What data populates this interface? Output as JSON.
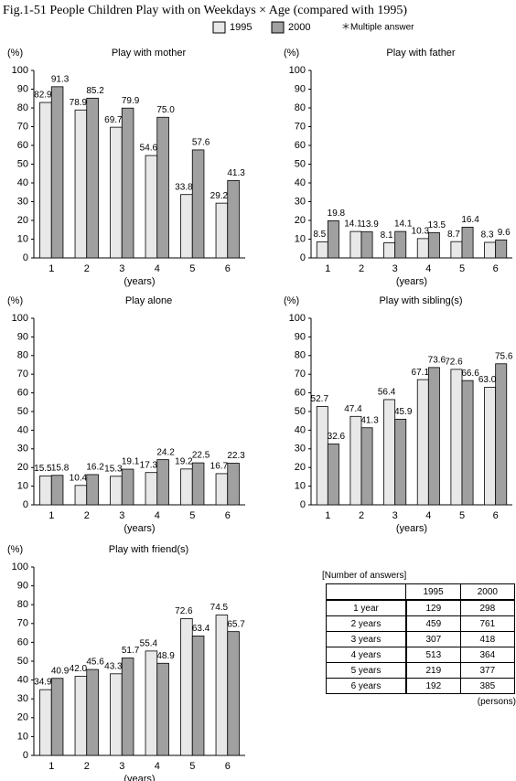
{
  "title": "Fig.1-51 People Children Play with on Weekdays × Age (compared with 1995)",
  "note": "＊Multiple answer",
  "chart_data": [
    {
      "type": "bar",
      "title": "Play with mother",
      "y_label": "(%)",
      "x_label": "(years)",
      "categories": [
        "1",
        "2",
        "3",
        "4",
        "5",
        "6"
      ],
      "series": [
        {
          "name": "1995",
          "color": "#e8e8e8",
          "values": [
            82.9,
            78.9,
            69.7,
            54.6,
            33.8,
            29.2
          ],
          "value_labels": [
            "82.9",
            "78.9",
            "69.7",
            "54.6",
            "33.8",
            "29.2"
          ]
        },
        {
          "name": "2000",
          "color": "#a0a0a0",
          "values": [
            91.3,
            85.2,
            79.9,
            75.0,
            57.6,
            41.3
          ],
          "value_labels": [
            "91.3",
            "85.2",
            "79.9",
            "75.0",
            "57.6",
            "41.3"
          ]
        }
      ],
      "ylim": [
        0,
        100
      ],
      "yticks": [
        0,
        10,
        20,
        30,
        40,
        50,
        60,
        70,
        80,
        90,
        100
      ]
    },
    {
      "type": "bar",
      "title": "Play with father",
      "y_label": "(%)",
      "x_label": "(years)",
      "categories": [
        "1",
        "2",
        "3",
        "4",
        "5",
        "6"
      ],
      "series": [
        {
          "name": "1995",
          "color": "#e8e8e8",
          "values": [
            8.5,
            14.1,
            8.1,
            10.3,
            8.7,
            8.3
          ],
          "value_labels": [
            "8.5",
            "14.1",
            "8.1",
            "10.3",
            "8.7",
            "8.3"
          ]
        },
        {
          "name": "2000",
          "color": "#a0a0a0",
          "values": [
            19.8,
            13.9,
            14.1,
            13.5,
            16.4,
            9.6
          ],
          "value_labels": [
            "19.8",
            "13.9",
            "14.1",
            "13.5",
            "16.4",
            "9.6"
          ]
        }
      ],
      "ylim": [
        0,
        100
      ],
      "yticks": [
        0,
        10,
        20,
        30,
        40,
        50,
        60,
        70,
        80,
        90,
        100
      ]
    },
    {
      "type": "bar",
      "title": "Play alone",
      "y_label": "(%)",
      "x_label": "(years)",
      "categories": [
        "1",
        "2",
        "3",
        "4",
        "5",
        "6"
      ],
      "series": [
        {
          "name": "1995",
          "color": "#e8e8e8",
          "values": [
            15.5,
            10.4,
            15.3,
            17.3,
            19.2,
            16.7
          ],
          "value_labels": [
            "15.5",
            "10.4",
            "15.3",
            "17.3",
            "19.2",
            "16.7"
          ]
        },
        {
          "name": "2000",
          "color": "#a0a0a0",
          "values": [
            15.8,
            16.2,
            19.1,
            24.2,
            22.5,
            22.3
          ],
          "value_labels": [
            "15.8",
            "16.2",
            "19.1",
            "24.2",
            "22.5",
            "22.3"
          ]
        }
      ],
      "ylim": [
        0,
        100
      ],
      "yticks": [
        0,
        10,
        20,
        30,
        40,
        50,
        60,
        70,
        80,
        90,
        100
      ]
    },
    {
      "type": "bar",
      "title": "Play with sibling(s)",
      "y_label": "(%)",
      "x_label": "(years)",
      "categories": [
        "1",
        "2",
        "3",
        "4",
        "5",
        "6"
      ],
      "series": [
        {
          "name": "1995",
          "color": "#e8e8e8",
          "values": [
            52.7,
            47.4,
            56.4,
            67.1,
            72.6,
            63.0
          ],
          "value_labels": [
            "52.7",
            "47.4",
            "56.4",
            "67.1",
            "72.6",
            "63.0"
          ]
        },
        {
          "name": "2000",
          "color": "#a0a0a0",
          "values": [
            32.6,
            41.3,
            45.9,
            73.6,
            66.6,
            75.6
          ],
          "value_labels": [
            "32.6",
            "41.3",
            "45.9",
            "73.6",
            "66.6",
            "75.6"
          ]
        }
      ],
      "ylim": [
        0,
        100
      ],
      "yticks": [
        0,
        10,
        20,
        30,
        40,
        50,
        60,
        70,
        80,
        90,
        100
      ]
    },
    {
      "type": "bar",
      "title": "Play with friend(s)",
      "y_label": "(%)",
      "x_label": "(years)",
      "categories": [
        "1",
        "2",
        "3",
        "4",
        "5",
        "6"
      ],
      "series": [
        {
          "name": "1995",
          "color": "#e8e8e8",
          "values": [
            34.9,
            42.0,
            43.3,
            55.4,
            72.6,
            74.5
          ],
          "value_labels": [
            "34.9",
            "42.0",
            "43.3",
            "55.4",
            "72.6",
            "74.5"
          ]
        },
        {
          "name": "2000",
          "color": "#a0a0a0",
          "values": [
            40.9,
            45.6,
            51.7,
            48.9,
            63.4,
            65.7
          ],
          "value_labels": [
            "40.9",
            "45.6",
            "51.7",
            "48.9",
            "63.4",
            "65.7"
          ]
        }
      ],
      "ylim": [
        0,
        100
      ],
      "yticks": [
        0,
        10,
        20,
        30,
        40,
        50,
        60,
        70,
        80,
        90,
        100
      ]
    }
  ],
  "table": {
    "caption": "[Number of answers]",
    "header": [
      "1995",
      "2000"
    ],
    "rows": [
      [
        "1 year",
        "129",
        "298"
      ],
      [
        "2 years",
        "459",
        "761"
      ],
      [
        "3 years",
        "307",
        "418"
      ],
      [
        "4 years",
        "513",
        "364"
      ],
      [
        "5 years",
        "219",
        "377"
      ],
      [
        "6 years",
        "192",
        "385"
      ]
    ],
    "unit": "(persons)"
  }
}
